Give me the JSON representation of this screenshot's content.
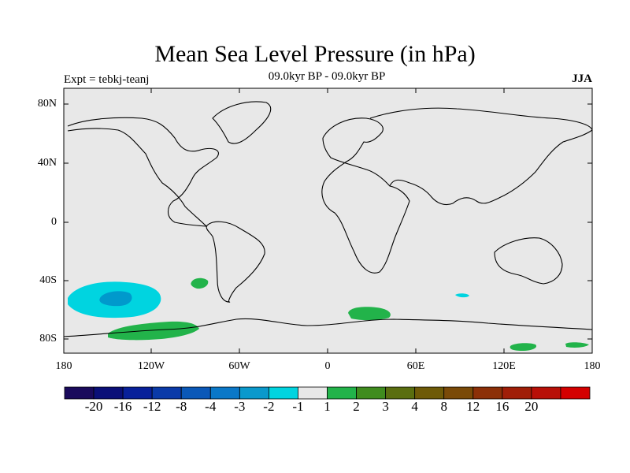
{
  "title": "Mean Sea Level Pressure (in hPa)",
  "subtitle": "09.0kyr BP - 09.0kyr BP",
  "experiment": "Expt = tebkj-teanj",
  "season": "JJA",
  "map": {
    "background_color": "#e8e8e8",
    "lat_labels": [
      "80N",
      "40N",
      "0",
      "40S",
      "80S"
    ],
    "lat_values": [
      80,
      40,
      0,
      -40,
      -80
    ],
    "lon_labels": [
      "180",
      "120W",
      "60W",
      "0",
      "60E",
      "120E",
      "180"
    ],
    "lon_values": [
      -180,
      -120,
      -60,
      0,
      60,
      120,
      180
    ],
    "anomalies": [
      {
        "name": "south-pacific-negative",
        "level": -2,
        "color": "#00d4e0"
      },
      {
        "name": "south-pacific-negative-core",
        "level": -3,
        "color": "#0099cc"
      },
      {
        "name": "indian-ocean-negative",
        "level": -2,
        "color": "#00d4e0"
      },
      {
        "name": "south-atlantic-positive",
        "level": 1,
        "color": "#22b34a"
      },
      {
        "name": "south-atlantic-positive-small",
        "level": 1,
        "color": "#22b34a"
      },
      {
        "name": "antarctic-pacific-positive",
        "level": 1,
        "color": "#22b34a"
      },
      {
        "name": "antarctic-australia-positive",
        "level": 1,
        "color": "#22b34a"
      },
      {
        "name": "antarctic-ross-positive",
        "level": 1,
        "color": "#22b34a"
      }
    ]
  },
  "colorbar": {
    "colors": [
      "#1a0a5c",
      "#0a0f78",
      "#08209a",
      "#0a3aa8",
      "#0a58b8",
      "#0a78c8",
      "#0a99cc",
      "#00d4e0",
      "#e8e8e8",
      "#22b34a",
      "#3f8c1e",
      "#5a6e10",
      "#6e5a08",
      "#7a4a08",
      "#8c3008",
      "#a01e08",
      "#b81008",
      "#d40000"
    ],
    "labels": [
      "-20",
      "-16",
      "-12",
      "-8",
      "-4",
      "-3",
      "-2",
      "-1",
      "1",
      "2",
      "3",
      "4",
      "8",
      "12",
      "16",
      "20"
    ]
  }
}
